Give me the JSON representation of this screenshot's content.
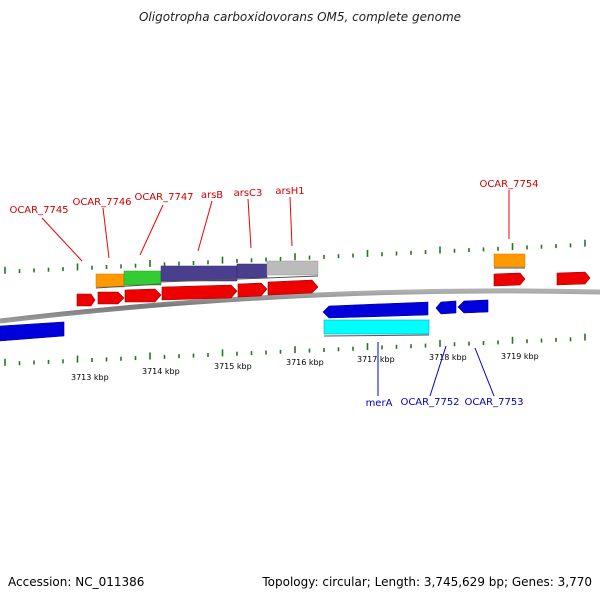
{
  "title": "Oligotropha carboxidovorans OM5, complete genome",
  "footer": {
    "accession": "Accession: NC_011386",
    "topology": "Topology: circular; Length: 3,745,629 bp; Genes: 3,770"
  },
  "ruler": {
    "labels": [
      "3713 kbp",
      "3714 kbp",
      "3715 kbp",
      "3716 kbp",
      "3717 kbp",
      "3718 kbp",
      "3719 kbp"
    ]
  },
  "gene_labels": {
    "forward": [
      "OCAR_7745",
      "OCAR_7746",
      "OCAR_7747",
      "arsB",
      "arsC3",
      "arsH1",
      "OCAR_7754"
    ],
    "reverse": [
      "merA",
      "OCAR_7752",
      "OCAR_7753"
    ]
  },
  "colors": {
    "forward_gene": "#ee0000",
    "reverse_gene": "#0000dd",
    "backbone": "#888888",
    "tick": "#227722",
    "orange_feature": "#ff9900",
    "green_feature": "#33cc33",
    "purple_feature": "#4a3f8f",
    "gray_feature": "#bbbbbb",
    "cyan_feature": "#00ffff",
    "forward_label": "#cc0000",
    "reverse_label": "#0000bb"
  }
}
